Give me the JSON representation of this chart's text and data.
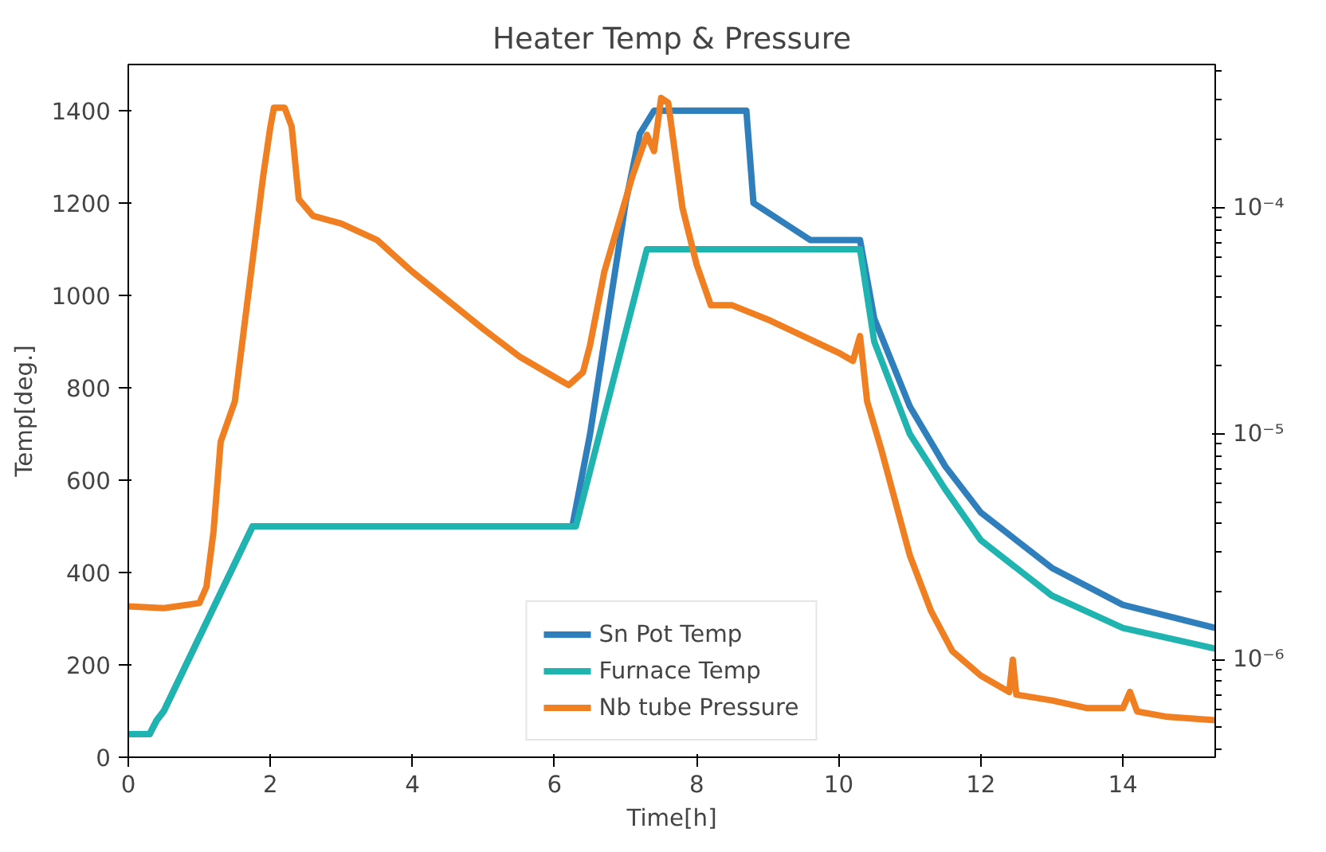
{
  "chart_data": {
    "type": "line",
    "title": "Heater Temp & Pressure",
    "xlabel": "Time[h]",
    "ylabel": "Temp[deg.]",
    "xlim": [
      0,
      15.3
    ],
    "ylim": [
      0,
      1500
    ],
    "xticks": [
      0,
      2,
      4,
      6,
      8,
      10,
      12,
      14
    ],
    "yticks": [
      0,
      200,
      400,
      600,
      800,
      1000,
      1200,
      1400
    ],
    "log": "y2",
    "y2lim": [
      3.7e-07,
      0.00043
    ],
    "y2ticks": [
      {
        "value": 1e-06,
        "label": "10⁻⁶"
      },
      {
        "value": 1e-05,
        "label": "10⁻⁵"
      },
      {
        "value": 0.0001,
        "label": "10⁻⁴"
      }
    ],
    "grid": false,
    "legend": "bottom",
    "line_style": "solid",
    "marker": "none",
    "series": [
      {
        "name": "Sn Pot Temp",
        "color": "#2f7fbd",
        "x": [
          0,
          0.3,
          0.4,
          0.5,
          1.75,
          6.25,
          6.5,
          6.8,
          7.0,
          7.2,
          7.4,
          8.7,
          8.8,
          9.3,
          9.6,
          10.3,
          10.5,
          11,
          11.5,
          12,
          13,
          14,
          15.3
        ],
        "values": [
          50,
          50,
          80,
          100,
          500,
          500,
          700,
          1000,
          1200,
          1350,
          1400,
          1400,
          1200,
          1150,
          1120,
          1120,
          950,
          760,
          630,
          530,
          410,
          330,
          280
        ]
      },
      {
        "name": "Furnace Temp",
        "color": "#1fb4b0",
        "x": [
          0,
          0.3,
          0.4,
          0.5,
          1.75,
          6.3,
          7.3,
          10.3,
          10.5,
          11,
          11.5,
          12,
          13,
          14,
          15.3
        ],
        "values": [
          50,
          50,
          80,
          100,
          500,
          500,
          1100,
          1100,
          900,
          700,
          580,
          470,
          350,
          280,
          235
        ]
      },
      {
        "name": "Nb tube Pressure",
        "color": "#f07f22",
        "axis": "y2",
        "x": [
          0,
          0.5,
          1.0,
          1.1,
          1.2,
          1.3,
          1.5,
          1.7,
          1.9,
          2.0,
          2.05,
          2.2,
          2.3,
          2.4,
          2.6,
          3,
          3.5,
          4,
          5,
          5.5,
          6,
          6.2,
          6.4,
          6.5,
          6.7,
          6.9,
          7.1,
          7.3,
          7.4,
          7.5,
          7.6,
          7.8,
          8.0,
          8.2,
          8.5,
          9,
          9.5,
          10,
          10.2,
          10.3,
          10.4,
          10.6,
          11,
          11.3,
          11.6,
          12,
          12.4,
          12.45,
          12.5,
          13,
          13.5,
          14,
          14.1,
          14.2,
          14.6,
          15.3
        ],
        "values": [
          1.72e-06,
          1.69e-06,
          1.78e-06,
          2.1e-06,
          3.7e-06,
          9.2e-06,
          1.39e-05,
          4.4e-05,
          0.000139,
          0.000228,
          0.000277,
          0.000277,
          0.000228,
          0.000109,
          9.2e-05,
          8.5e-05,
          7.2e-05,
          5.2e-05,
          2.9e-05,
          2.2e-05,
          1.78e-05,
          1.64e-05,
          1.87e-05,
          2.47e-05,
          5.2e-05,
          8.5e-05,
          0.000139,
          0.00021,
          0.000178,
          0.000306,
          0.000291,
          0.0001,
          5.6e-05,
          3.7e-05,
          3.7e-05,
          3.2e-05,
          2.7e-05,
          2.28e-05,
          2.1e-05,
          2.7e-05,
          1.39e-05,
          8.5e-06,
          2.9e-06,
          1.64e-06,
          1.09e-06,
          8.5e-07,
          7.2e-07,
          1e-06,
          7e-07,
          6.6e-07,
          6.1e-07,
          6.1e-07,
          7.2e-07,
          5.9e-07,
          5.6e-07,
          5.4e-07
        ]
      }
    ]
  }
}
